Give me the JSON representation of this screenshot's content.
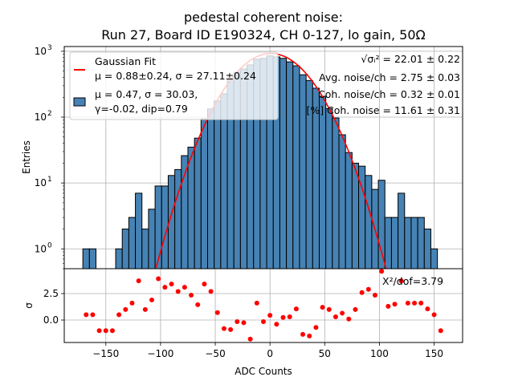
{
  "chart_data": [
    {
      "type": "bar",
      "panel": "histogram",
      "title_line1": "pedestal coherent noise:",
      "title_line2": "Run 27, Board ID E190324, CH 0-127, lo gain, 50Ω",
      "xlabel": "",
      "ylabel": "Entries",
      "yscale": "log",
      "xlim": [
        -188,
        176
      ],
      "ylim": [
        0.5,
        1180
      ],
      "grid": true,
      "bin_width": 6,
      "bin_centers": [
        -168,
        -162,
        -156,
        -150,
        -144,
        -138,
        -132,
        -126,
        -120,
        -114,
        -108,
        -102,
        -96,
        -90,
        -84,
        -78,
        -72,
        -66,
        -60,
        -54,
        -48,
        -42,
        -36,
        -30,
        -24,
        -18,
        -12,
        -6,
        0,
        6,
        12,
        18,
        24,
        30,
        36,
        42,
        48,
        54,
        60,
        66,
        72,
        78,
        84,
        90,
        96,
        102,
        108,
        114,
        120,
        126,
        132,
        138,
        144,
        150,
        156
      ],
      "counts": [
        1,
        1,
        0,
        0,
        0,
        1,
        2,
        3,
        7,
        2,
        4,
        9,
        9,
        13,
        16,
        26,
        35,
        48,
        94,
        133,
        176,
        226,
        380,
        480,
        540,
        620,
        755,
        780,
        850,
        820,
        780,
        690,
        600,
        440,
        360,
        275,
        207,
        135,
        97,
        54,
        29,
        20,
        18,
        13,
        8,
        11,
        3,
        3,
        7,
        3,
        3,
        3,
        2,
        1,
        0
      ],
      "ytick_labels": [
        {
          "value": 1,
          "label": "10",
          "exp": "0"
        },
        {
          "value": 10,
          "label": "10",
          "exp": "1"
        },
        {
          "value": 100,
          "label": "10",
          "exp": "2"
        },
        {
          "value": 1000,
          "label": "10",
          "exp": "3"
        }
      ],
      "bar_color": "#4682b4",
      "fit": {
        "name": "Gaussian Fit",
        "amplitude": 925,
        "mu": 0.88,
        "sigma": 27.11,
        "x_range": [
          -110,
          110
        ],
        "color": "#ff0000"
      },
      "legend": {
        "placement": "upper-left",
        "entries": [
          {
            "type": "line",
            "color": "#ff0000",
            "lines": [
              "Gaussian Fit",
              "μ = 0.88±0.24, σ = 27.11±0.24"
            ]
          },
          {
            "type": "patch",
            "color": "#4682b4",
            "lines": [
              "μ = 0.47, σ = 30.03,",
              "γ=-0.02, dip=0.79"
            ]
          }
        ]
      },
      "annotations": [
        {
          "prefix": "√σᵢ²",
          "text": " = 22.01 ± 0.22"
        },
        {
          "prefix": "",
          "text": "Avg. noise/ch = 2.75 ± 0.03"
        },
        {
          "prefix": "",
          "text": "Coh. noise/ch = 0.32 ± 0.01"
        },
        {
          "prefix": "",
          "text": "[%] Coh. noise = 11.61  ± 0.31"
        }
      ]
    },
    {
      "type": "scatter",
      "panel": "residuals",
      "xlabel": "ADC Counts",
      "ylabel": "σ",
      "xlim": [
        -188,
        176
      ],
      "ylim": [
        -2.12,
        4.85
      ],
      "grid": true,
      "x": [
        -168,
        -162,
        -156,
        -150,
        -144,
        -138,
        -132,
        -126,
        -120,
        -114,
        -108,
        -102,
        -96,
        -90,
        -84,
        -78,
        -72,
        -66,
        -60,
        -54,
        -48,
        -42,
        -36,
        -30,
        -24,
        -18,
        -12,
        -6,
        0,
        6,
        12,
        18,
        24,
        30,
        36,
        42,
        48,
        54,
        60,
        66,
        72,
        78,
        84,
        90,
        96,
        102,
        108,
        114,
        120,
        126,
        132,
        138,
        144,
        150,
        156
      ],
      "y": [
        0.5,
        0.5,
        -1.0,
        -1.0,
        -1.0,
        0.5,
        1.0,
        1.6,
        3.7,
        1.0,
        1.9,
        3.9,
        3.1,
        3.4,
        2.7,
        3.1,
        2.35,
        1.45,
        3.4,
        2.7,
        0.7,
        -0.8,
        -0.9,
        -0.15,
        -0.25,
        -1.8,
        1.6,
        -0.15,
        0.45,
        -0.4,
        0.25,
        0.3,
        1.05,
        -1.35,
        -1.5,
        -0.7,
        1.2,
        1.0,
        0.3,
        0.65,
        0.1,
        1.0,
        2.6,
        2.9,
        2.35,
        4.6,
        1.3,
        1.5,
        3.7,
        1.6,
        1.6,
        1.6,
        1.05,
        0.5,
        -1.0
      ],
      "point_color": "#ff0000",
      "xtick_labels": [
        "−150",
        "−100",
        "−50",
        "0",
        "50",
        "100",
        "150"
      ],
      "xtick_values": [
        -150,
        -100,
        -50,
        0,
        50,
        100,
        150
      ],
      "ytick_labels": [
        "0.0",
        "2.5"
      ],
      "ytick_values": [
        0,
        2.5
      ],
      "annotation": "X²/dof=3.79"
    }
  ]
}
